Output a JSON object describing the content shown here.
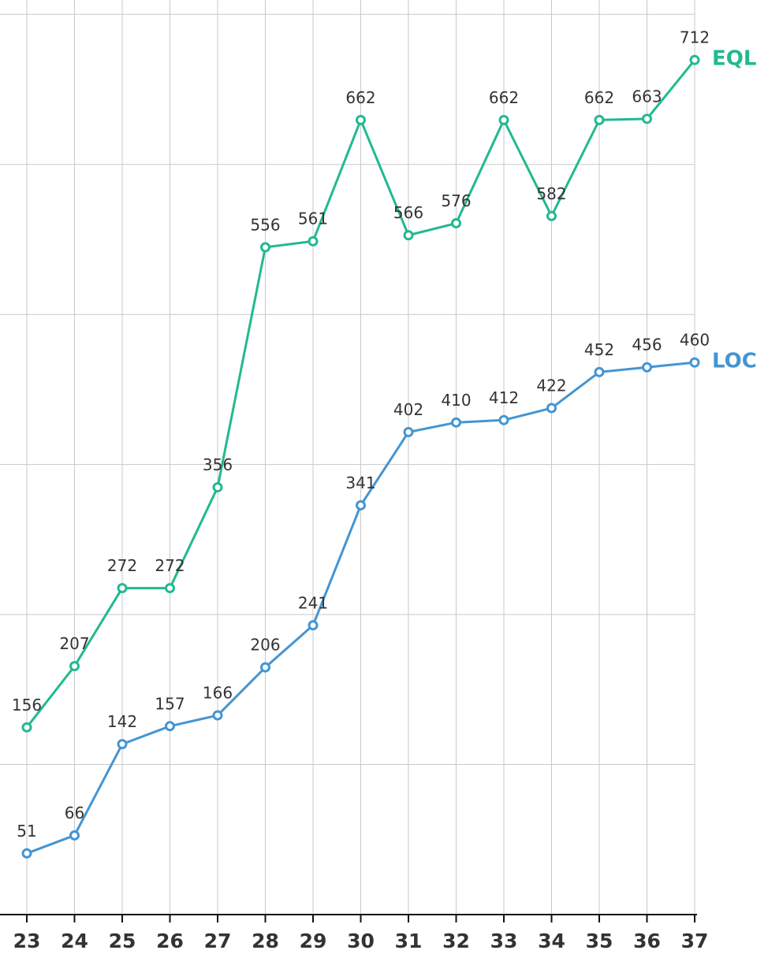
{
  "chart_data": {
    "type": "line",
    "categories": [
      "23",
      "24",
      "25",
      "26",
      "27",
      "28",
      "29",
      "30",
      "31",
      "32",
      "33",
      "34",
      "35",
      "36",
      "37"
    ],
    "series": [
      {
        "name": "EQL",
        "color": "#22b990",
        "values": [
          156,
          207,
          272,
          272,
          356,
          556,
          561,
          662,
          566,
          576,
          662,
          582,
          662,
          663,
          712
        ]
      },
      {
        "name": "LOC",
        "color": "#4495d2",
        "values": [
          51,
          66,
          142,
          157,
          166,
          206,
          241,
          341,
          402,
          410,
          412,
          422,
          452,
          456,
          460
        ]
      }
    ],
    "ylim": [
      0,
      762
    ],
    "yticks": [
      0,
      125,
      250,
      375,
      500,
      625,
      750
    ],
    "grid": true
  }
}
